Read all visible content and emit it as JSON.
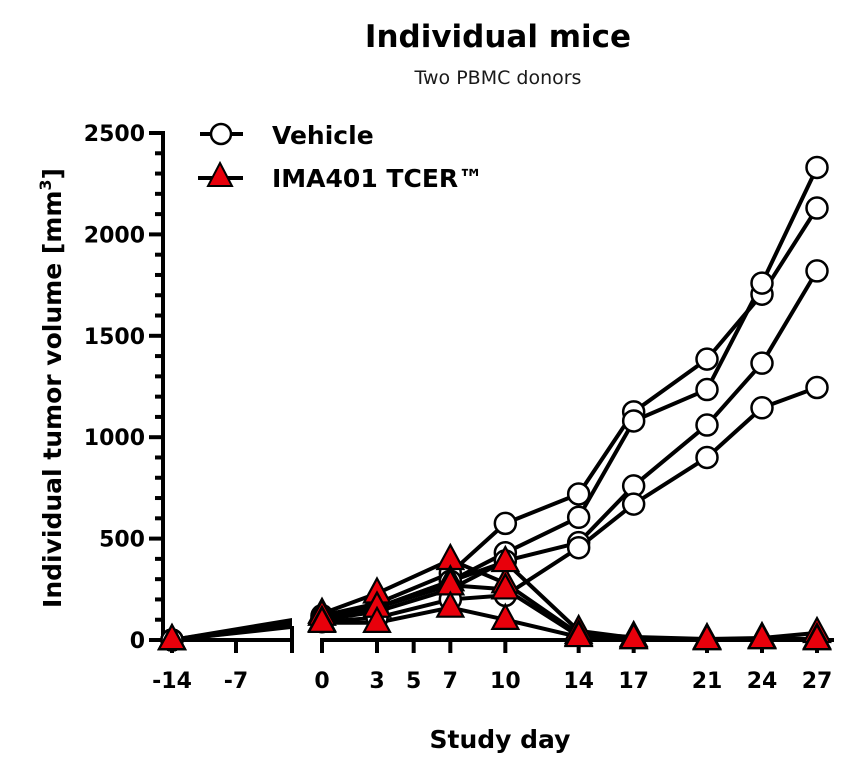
{
  "chart_data": {
    "type": "line",
    "title": "Individual mice",
    "subtitle": "Two PBMC donors",
    "xlabel": "Study day",
    "ylabel": "Individual tumor volume [mm",
    "ylabel_superscript": "3",
    "ylabel_suffix": "]",
    "ylim": [
      0,
      2500
    ],
    "yticks": [
      0,
      500,
      1000,
      1500,
      2000,
      2500
    ],
    "yminor_step": 100,
    "x_segments": [
      {
        "range": [
          -14,
          -0.6
        ],
        "ticks": [
          -14,
          -7
        ],
        "end_tick": true
      },
      {
        "range": [
          0,
          27
        ],
        "ticks": [
          0,
          3,
          5,
          7,
          10,
          14,
          17,
          21,
          24,
          27
        ]
      }
    ],
    "xtick_labels": [
      "-14",
      "-7",
      "0",
      "3",
      "5",
      "7",
      "10",
      "14",
      "17",
      "21",
      "24",
      "27"
    ],
    "grid": false,
    "legend_position": "top-left",
    "x": [
      -14,
      0,
      3,
      7,
      10,
      14,
      17,
      21,
      24,
      27
    ],
    "series": [
      {
        "name": "Vehicle",
        "marker": "circle",
        "marker_fill": "#ffffff",
        "mice": [
          [
            0,
            120,
            180,
            330,
            575,
            720,
            1125,
            1385,
            1705,
            2130
          ],
          [
            0,
            110,
            160,
            290,
            430,
            605,
            1080,
            1235,
            1760,
            2330
          ],
          [
            0,
            100,
            140,
            250,
            390,
            480,
            760,
            1060,
            1365,
            1820
          ],
          [
            0,
            90,
            110,
            200,
            220,
            455,
            670,
            900,
            1145,
            1245
          ]
        ]
      },
      {
        "name": "IMA401 TCER™",
        "marker": "triangle",
        "marker_fill": "#e8000b",
        "mice": [
          [
            0,
            130,
            230,
            395,
            280,
            30,
            15,
            5,
            10,
            35
          ],
          [
            0,
            120,
            160,
            290,
            385,
            45,
            10,
            3,
            8,
            5
          ],
          [
            0,
            90,
            160,
            270,
            250,
            20,
            5,
            0,
            5,
            0
          ],
          [
            0,
            85,
            85,
            160,
            100,
            15,
            5,
            0,
            5,
            0
          ]
        ]
      }
    ],
    "colors": {
      "line": "#000000",
      "marker_edge": "#000000"
    }
  }
}
